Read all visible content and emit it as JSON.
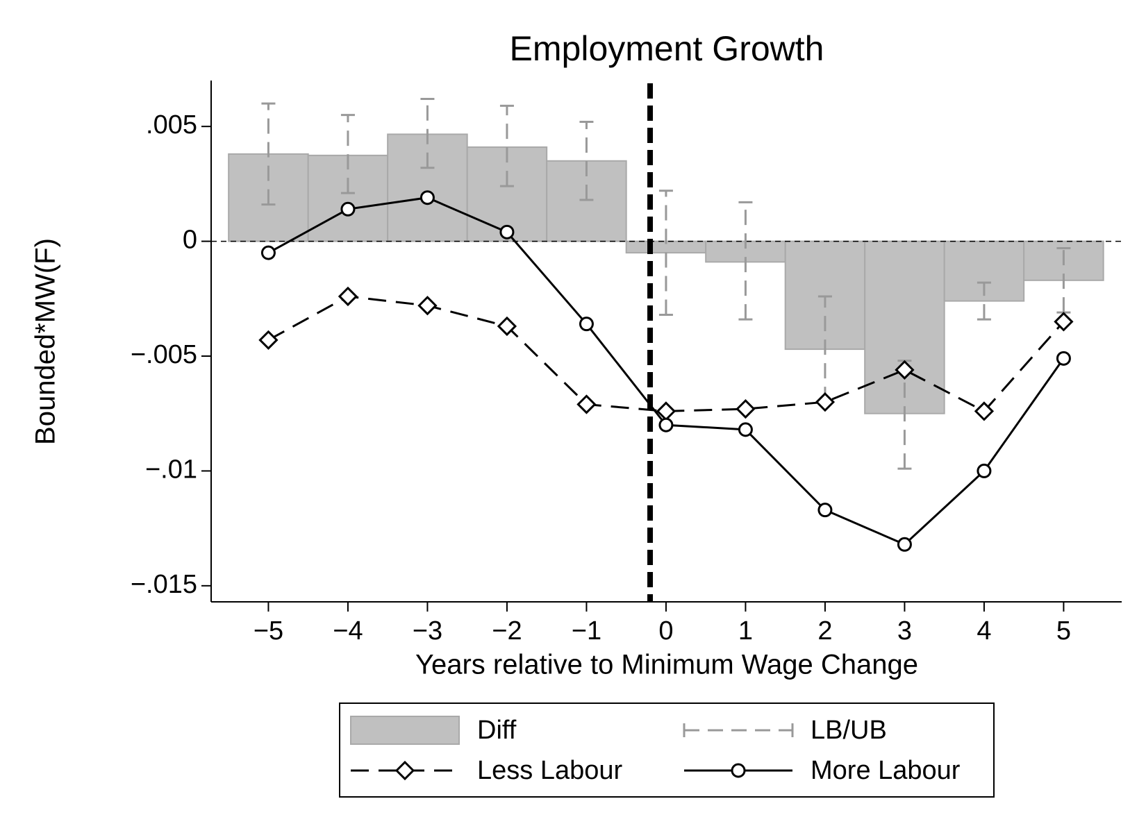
{
  "chart_data": {
    "type": "bar_line",
    "title": "Employment Growth",
    "x_label": "Years relative to Minimum Wage Change",
    "y_label": "Bounded*MW(F)",
    "x": [
      -5,
      -4,
      -3,
      -2,
      -1,
      0,
      1,
      2,
      3,
      4,
      5
    ],
    "xlim": [
      -5.72,
      5.73
    ],
    "xticks": [
      {
        "value": -5,
        "label": "−5"
      },
      {
        "value": -4,
        "label": "−4"
      },
      {
        "value": -3,
        "label": "−3"
      },
      {
        "value": -2,
        "label": "−2"
      },
      {
        "value": -1,
        "label": "−1"
      },
      0,
      1,
      2,
      3,
      4,
      5
    ],
    "ylim": [
      -0.0157,
      0.007
    ],
    "yticks": [
      {
        "value": -0.015,
        "label": "−.015"
      },
      {
        "value": -0.01,
        "label": "−.01"
      },
      {
        "value": -0.005,
        "label": "−.005"
      },
      0,
      {
        "value": 0.005,
        "label": ".005"
      }
    ],
    "vline": -0.2,
    "hline": 0,
    "legend": "bottom",
    "series": [
      {
        "name": "Diff",
        "kind": "bar",
        "color": "#c0c0c0",
        "values": [
          0.0038,
          0.00374,
          0.00466,
          0.0041,
          0.0035,
          -0.0005,
          -0.0009,
          -0.0047,
          -0.0075,
          -0.0026,
          -0.0017
        ]
      },
      {
        "name": "LB/UB",
        "kind": "range",
        "color": "#999999",
        "lower": [
          0.0016,
          0.0021,
          0.0032,
          0.0024,
          0.0018,
          -0.0032,
          -0.0034,
          -0.007,
          -0.0099,
          -0.0034,
          -0.0031
        ],
        "upper": [
          0.006,
          0.0055,
          0.0062,
          0.0059,
          0.0052,
          0.0022,
          0.0017,
          -0.0024,
          -0.0052,
          -0.0018,
          -0.0003
        ]
      },
      {
        "name": "Less Labour",
        "kind": "line",
        "dash": true,
        "marker": "diamond",
        "color": "#000000",
        "values": [
          -0.0043,
          -0.0024,
          -0.0028,
          -0.0037,
          -0.0071,
          -0.0074,
          -0.0073,
          -0.007,
          -0.0056,
          -0.0074,
          -0.0035
        ]
      },
      {
        "name": "More Labour",
        "kind": "line",
        "dash": false,
        "marker": "circle",
        "color": "#000000",
        "values": [
          -0.0005,
          0.0014,
          0.0019,
          0.0004,
          -0.0036,
          -0.008,
          -0.0082,
          -0.0117,
          -0.0132,
          -0.01,
          -0.0051
        ]
      }
    ]
  }
}
